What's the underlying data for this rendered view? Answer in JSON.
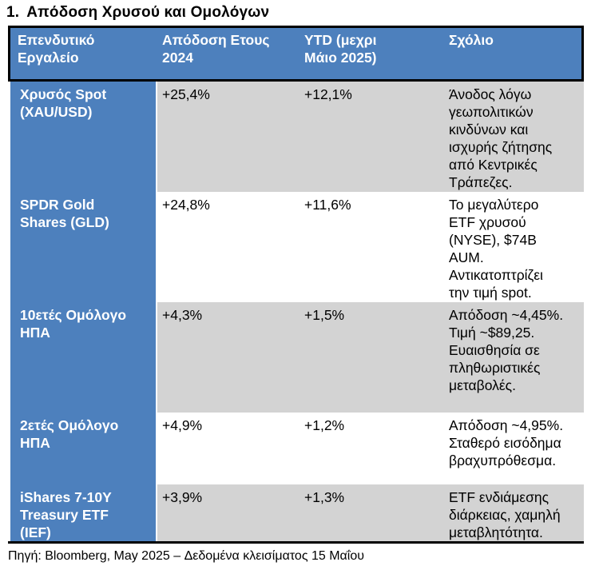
{
  "title": {
    "number": "1.",
    "text": "Απόδοση Χρυσού και Ομολόγων"
  },
  "table": {
    "columns": [
      {
        "label": "Επενδυτικό Εργαλείο",
        "lines": [
          "Επενδυτικό",
          "Εργαλείο"
        ]
      },
      {
        "label": "Απόδοση Ετους 2024",
        "lines": [
          "Απόδοση Ετους",
          "2024"
        ]
      },
      {
        "label": "YTD (μεχρι Μάιο 2025)",
        "lines": [
          "YTD (μεχρι",
          "Μάιο 2025)"
        ]
      },
      {
        "label": "Σχόλιο",
        "lines": [
          "Σχόλιο"
        ]
      }
    ],
    "rows": [
      {
        "instrument": "Χρυσός Spot (XAU/USD)",
        "return_2024": "+25,4%",
        "ytd": "+12,1%",
        "comment": "Άνοδος λόγω γεωπολιτικών κινδύνων και ισχυρής ζήτησης από Κεντρικές Τράπεζες."
      },
      {
        "instrument": "SPDR Gold Shares (GLD)",
        "return_2024": "+24,8%",
        "ytd": "+11,6%",
        "comment": "Το μεγαλύτερο ETF χρυσού (NYSE), $74B AUM. Αντικατοπτρίζει την τιμή spot."
      },
      {
        "instrument": "10ετές Ομόλογο ΗΠΑ",
        "return_2024": "+4,3%",
        "ytd": "+1,5%",
        "comment": "Απόδοση ~4,45%. Τιμή ~$89,25. Ευαισθησία σε πληθωριστικές μεταβολές."
      },
      {
        "instrument": "2ετές Ομόλογο ΗΠΑ",
        "return_2024": "+4,9%",
        "ytd": "+1,2%",
        "comment": "Απόδοση ~4,95%. Σταθερό εισόδημα βραχυπρόθεσμα."
      },
      {
        "instrument": "iShares 7-10Y Treasury ETF (IEF)",
        "return_2024": "+3,9%",
        "ytd": "+1,3%",
        "comment": "ETF ενδιάμεσης διάρκειας, χαμηλή μεταβλητότητα."
      }
    ]
  },
  "footer": "Πηγή: Bloomberg, May 2025 – Δεδομένα κλεισίματος 15 Μαΐου",
  "colors": {
    "header_blue": "#4d80bd",
    "row_gray": "#d3d3d3",
    "row_white": "#ffffff",
    "border_black": "#000000",
    "header_text": "#ffffff"
  }
}
